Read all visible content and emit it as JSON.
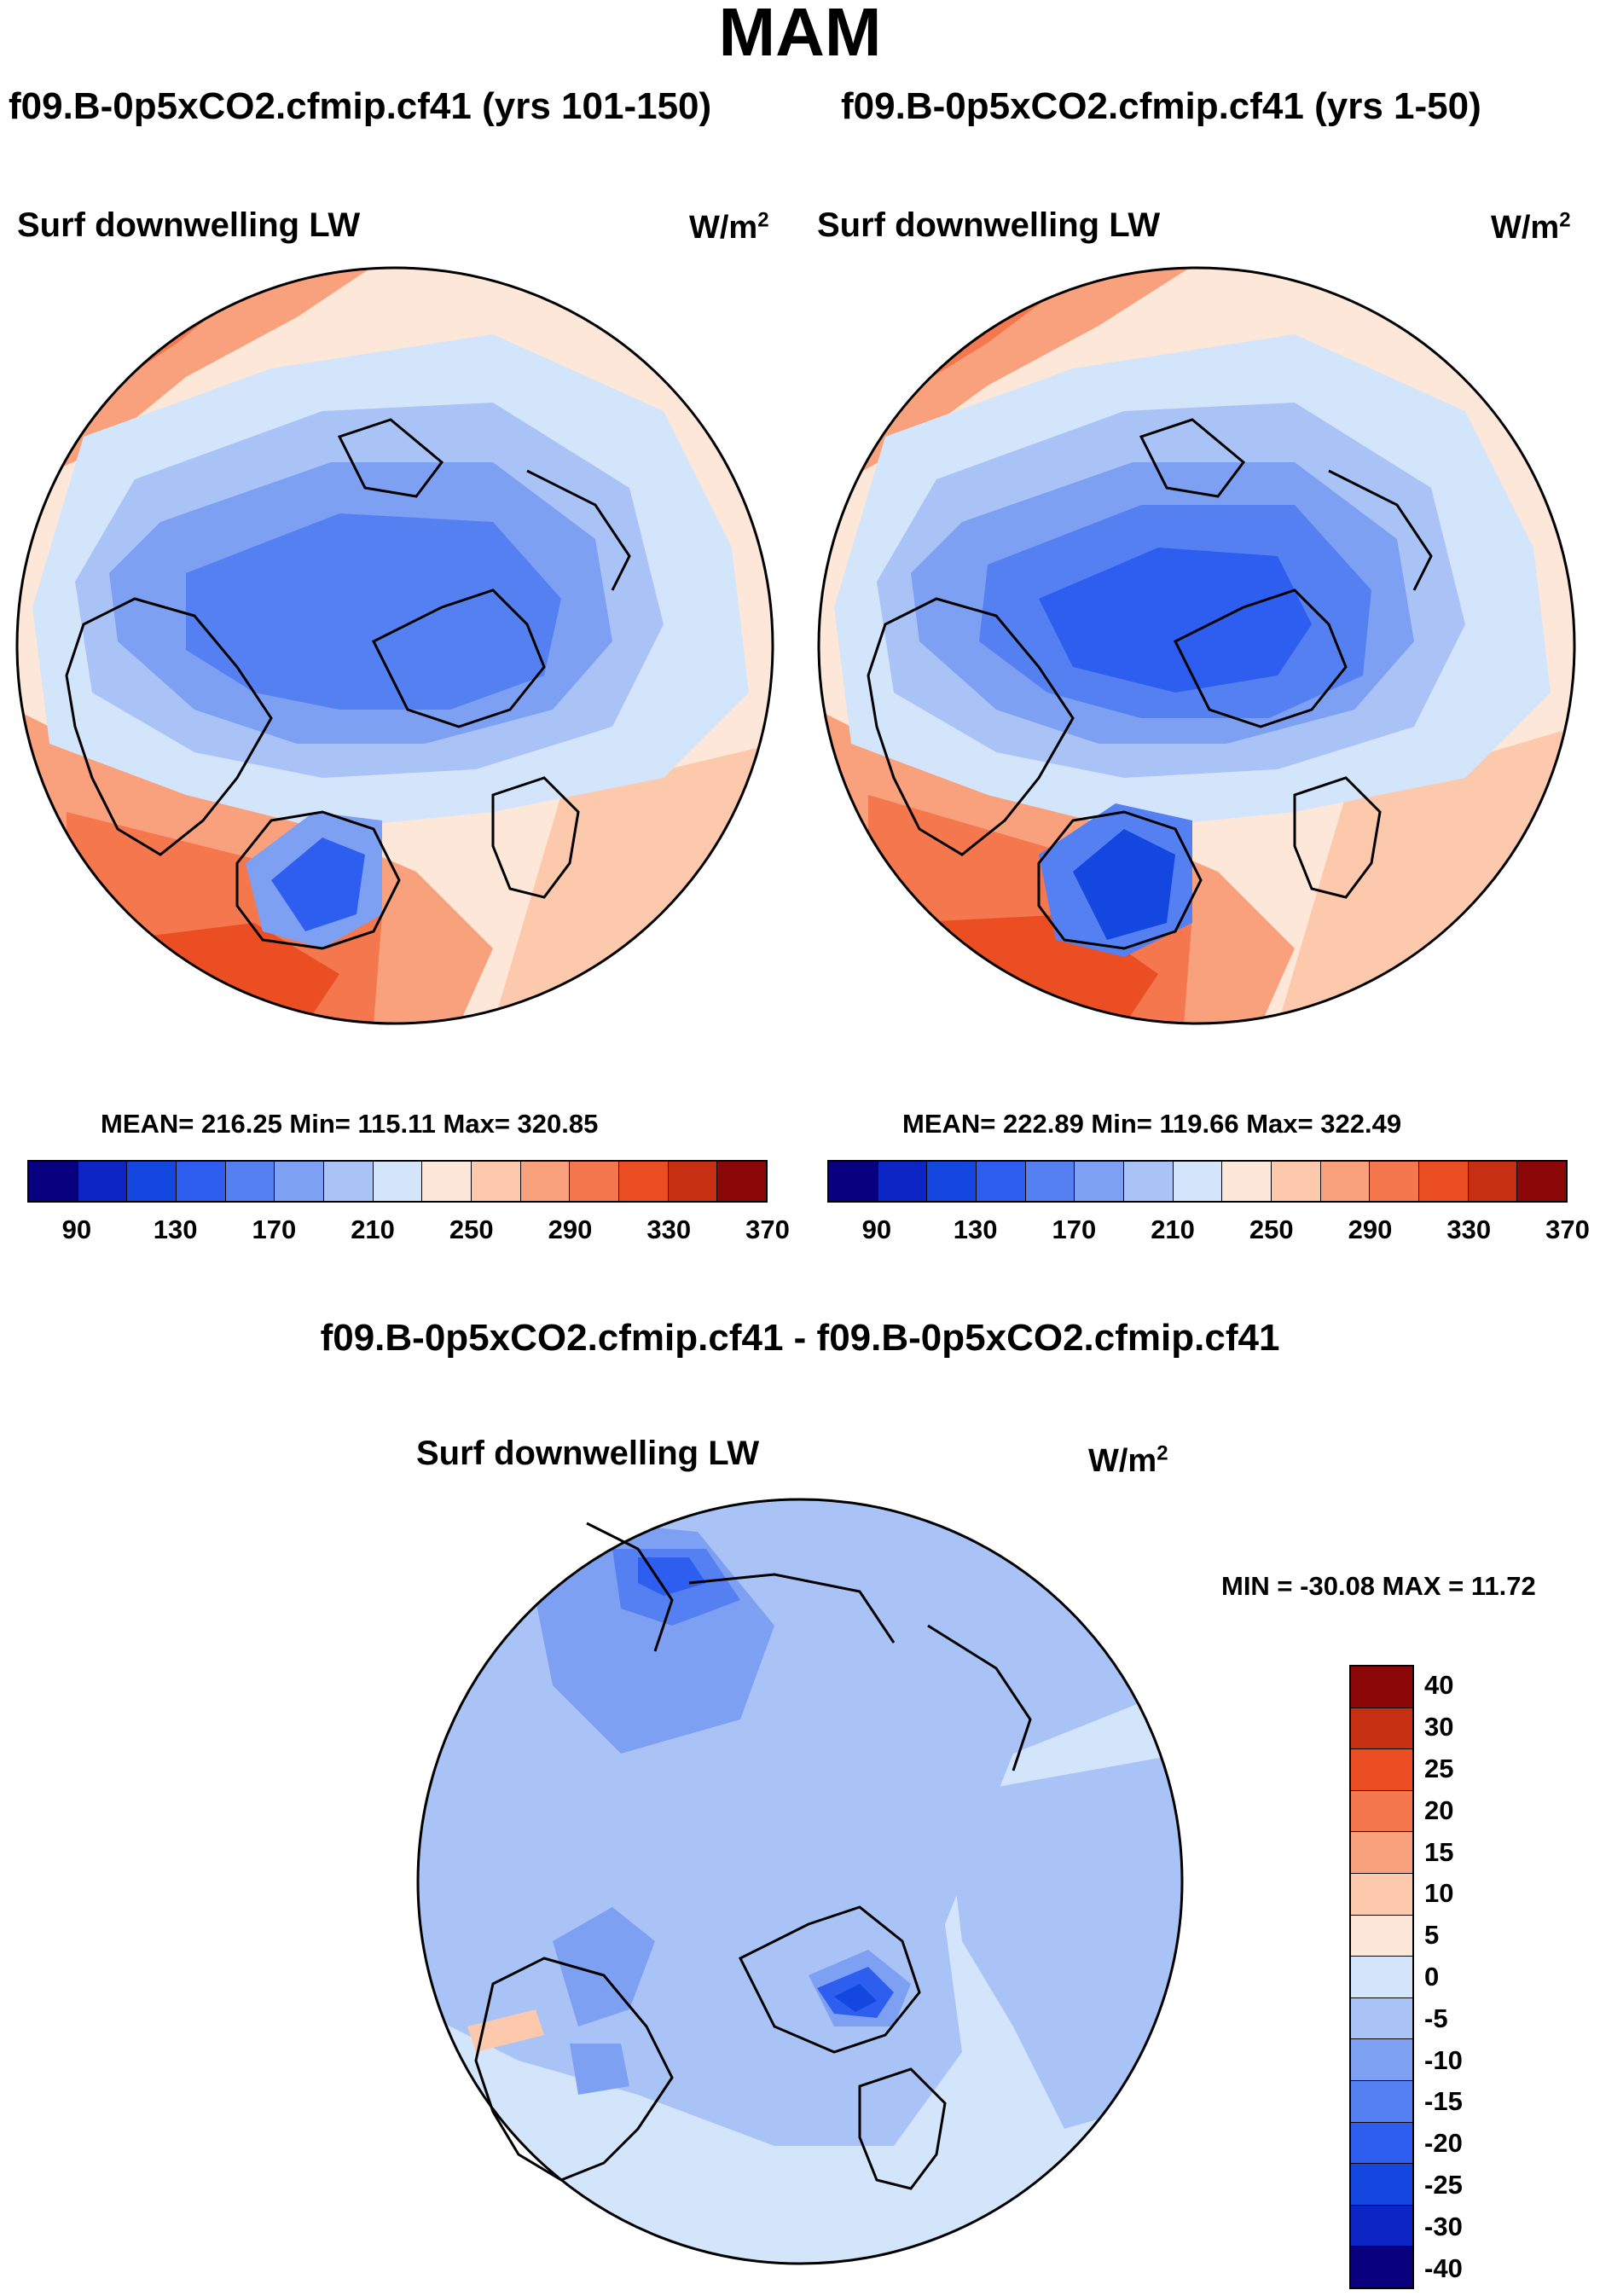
{
  "page_title": "MAM",
  "panels": [
    {
      "case_title": "f09.B-0p5xCO2.cfmip.cf41 (yrs 101-150)",
      "variable": "Surf downwelling LW",
      "units_base": "W/m",
      "units_exp": "2",
      "stats": "MEAN= 216.25  Min= 115.11  Max= 320.85"
    },
    {
      "case_title": "f09.B-0p5xCO2.cfmip.cf41 (yrs 1-50)",
      "variable": "Surf downwelling LW",
      "units_base": "W/m",
      "units_exp": "2",
      "stats": "MEAN= 222.89  Min= 119.66  Max= 322.49"
    }
  ],
  "diff_panel": {
    "case_title": "f09.B-0p5xCO2.cfmip.cf41 - f09.B-0p5xCO2.cfmip.cf41",
    "variable": "Surf downwelling LW",
    "units_base": "W/m",
    "units_exp": "2",
    "stats": "MIN = -30.08 MAX =  11.72"
  },
  "colorbar_abs": {
    "colors": [
      "#08007e",
      "#0c25c4",
      "#1447e0",
      "#2e5ef0",
      "#5580f2",
      "#7ea0f2",
      "#a9c3f6",
      "#d3e5fb",
      "#fde7d8",
      "#fcc9ad",
      "#f9a07c",
      "#f4774e",
      "#eb4e22",
      "#c62f12",
      "#8c0707"
    ],
    "tick_labels": [
      "90",
      "130",
      "170",
      "210",
      "250",
      "290",
      "330",
      "370"
    ]
  },
  "colorbar_diff": {
    "colors": [
      "#8c0707",
      "#c62f12",
      "#eb4e22",
      "#f4774e",
      "#f9a07c",
      "#fcc9ad",
      "#fde7d8",
      "#d3e5fb",
      "#a9c3f6",
      "#7ea0f2",
      "#5580f2",
      "#2e5ef0",
      "#1447e0",
      "#0c25c4",
      "#08007e"
    ],
    "tick_labels": [
      "40",
      "30",
      "25",
      "20",
      "15",
      "10",
      "5",
      "0",
      "-5",
      "-10",
      "-15",
      "-20",
      "-25",
      "-30",
      "-40"
    ]
  },
  "chart_data": [
    {
      "type": "heatmap",
      "projection": "north polar stereographic",
      "title": "f09.B-0p5xCO2.cfmip.cf41 (yrs 101-150)",
      "variable": "Surf downwelling LW",
      "units": "W/m2",
      "season": "MAM",
      "mean": 216.25,
      "min": 115.11,
      "max": 320.85,
      "levels": [
        90,
        130,
        170,
        210,
        250,
        290,
        330,
        370
      ]
    },
    {
      "type": "heatmap",
      "projection": "north polar stereographic",
      "title": "f09.B-0p5xCO2.cfmip.cf41 (yrs 1-50)",
      "variable": "Surf downwelling LW",
      "units": "W/m2",
      "season": "MAM",
      "mean": 222.89,
      "min": 119.66,
      "max": 322.49,
      "levels": [
        90,
        130,
        170,
        210,
        250,
        290,
        330,
        370
      ]
    },
    {
      "type": "heatmap",
      "projection": "north polar stereographic",
      "title": "f09.B-0p5xCO2.cfmip.cf41 - f09.B-0p5xCO2.cfmip.cf41",
      "variable": "Surf downwelling LW",
      "units": "W/m2",
      "season": "MAM",
      "min": -30.08,
      "max": 11.72,
      "levels": [
        -40,
        -30,
        -25,
        -20,
        -15,
        -10,
        -5,
        0,
        5,
        10,
        15,
        20,
        25,
        30,
        40
      ]
    }
  ]
}
